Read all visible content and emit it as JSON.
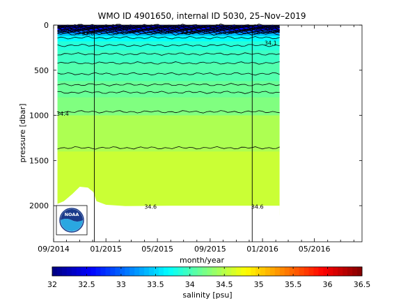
{
  "chart_data": {
    "type": "heatmap",
    "title": "WMO ID 4901650, internal ID 5030, 25–Nov–2019",
    "xlabel": "month/year",
    "ylabel": "pressure [dbar]",
    "x_tick_labels": [
      "09/2014",
      "01/2015",
      "05/2015",
      "09/2015",
      "01/2016",
      "05/2016"
    ],
    "x_range": [
      "2014-09-01",
      "2016-08-20"
    ],
    "y_ticks": [
      0,
      500,
      1000,
      1500,
      2000
    ],
    "ylim": [
      0,
      2400
    ],
    "y_reversed": true,
    "grid": false,
    "data_start": "2014-09-10",
    "data_end": "2016-02-10",
    "marker_lines": [
      "2014-12-05",
      "2015-12-08"
    ],
    "max_pressure_profile": [
      {
        "date": "2014-09-10",
        "pressure": 1980
      },
      {
        "date": "2014-09-25",
        "pressure": 1950
      },
      {
        "date": "2014-10-15",
        "pressure": 1870
      },
      {
        "date": "2014-11-01",
        "pressure": 1790
      },
      {
        "date": "2014-11-20",
        "pressure": 1800
      },
      {
        "date": "2014-12-03",
        "pressure": 1850
      },
      {
        "date": "2014-12-10",
        "pressure": 1950
      },
      {
        "date": "2015-01-01",
        "pressure": 1990
      },
      {
        "date": "2015-02-15",
        "pressure": 2005
      },
      {
        "date": "2015-06-01",
        "pressure": 2000
      },
      {
        "date": "2015-09-01",
        "pressure": 2000
      },
      {
        "date": "2015-12-01",
        "pressure": 2000
      },
      {
        "date": "2016-02-10",
        "pressure": 2000
      }
    ],
    "salinity_layers": [
      {
        "p_top": 0,
        "p_bottom": 30,
        "salinity": 32.2
      },
      {
        "p_top": 30,
        "p_bottom": 60,
        "salinity": 32.6
      },
      {
        "p_top": 60,
        "p_bottom": 90,
        "salinity": 33.0
      },
      {
        "p_top": 90,
        "p_bottom": 120,
        "salinity": 33.4
      },
      {
        "p_top": 120,
        "p_bottom": 180,
        "salinity": 33.7
      },
      {
        "p_top": 180,
        "p_bottom": 280,
        "salinity": 33.85
      },
      {
        "p_top": 280,
        "p_bottom": 420,
        "salinity": 33.95
      },
      {
        "p_top": 420,
        "p_bottom": 620,
        "salinity": 34.05
      },
      {
        "p_top": 620,
        "p_bottom": 800,
        "salinity": 34.15
      },
      {
        "p_top": 800,
        "p_bottom": 1000,
        "salinity": 34.25
      },
      {
        "p_top": 1000,
        "p_bottom": 1400,
        "salinity": 34.45
      },
      {
        "p_top": 1400,
        "p_bottom": 2100,
        "salinity": 34.58
      }
    ],
    "contours": [
      {
        "pressure": 5
      },
      {
        "pressure": 12
      },
      {
        "pressure": 20
      },
      {
        "pressure": 28
      },
      {
        "pressure": 36
      },
      {
        "pressure": 44
      },
      {
        "pressure": 52
      },
      {
        "pressure": 60
      },
      {
        "pressure": 68
      },
      {
        "pressure": 76
      },
      {
        "pressure": 85
      },
      {
        "pressure": 95
      },
      {
        "pressure": 140
      },
      {
        "pressure": 225
      },
      {
        "pressure": 320
      },
      {
        "pressure": 420
      },
      {
        "pressure": 540
      },
      {
        "pressure": 660
      },
      {
        "pressure": 745
      },
      {
        "pressure": 960
      },
      {
        "pressure": 1360
      }
    ],
    "contour_labels": [
      {
        "text": "33.8",
        "date": "2014-11-20",
        "pressure": 90
      },
      {
        "text": "33.6",
        "date": "2015-07-10",
        "pressure": 75
      },
      {
        "text": "34.1",
        "date": "2016-01-20",
        "pressure": 195
      },
      {
        "text": "34.4",
        "date": "2014-09-22",
        "pressure": 980
      },
      {
        "text": "34.6",
        "date": "2015-04-15",
        "pressure": 2010
      },
      {
        "text": "34.6",
        "date": "2015-12-20",
        "pressure": 2010
      }
    ],
    "colorbar": {
      "label": "salinity [psu]",
      "min": 32,
      "max": 36.5,
      "tick_labels": [
        "32",
        "32.5",
        "33",
        "33.5",
        "34",
        "34.5",
        "35",
        "35.5",
        "36",
        "36.5"
      ],
      "colormap": "jet"
    },
    "logo_text": "NOAA",
    "colors": {
      "axis": "#000000",
      "background": "#ffffff",
      "logo_blue": "#1a3a8a",
      "logo_light_blue": "#2aa7e1"
    }
  }
}
